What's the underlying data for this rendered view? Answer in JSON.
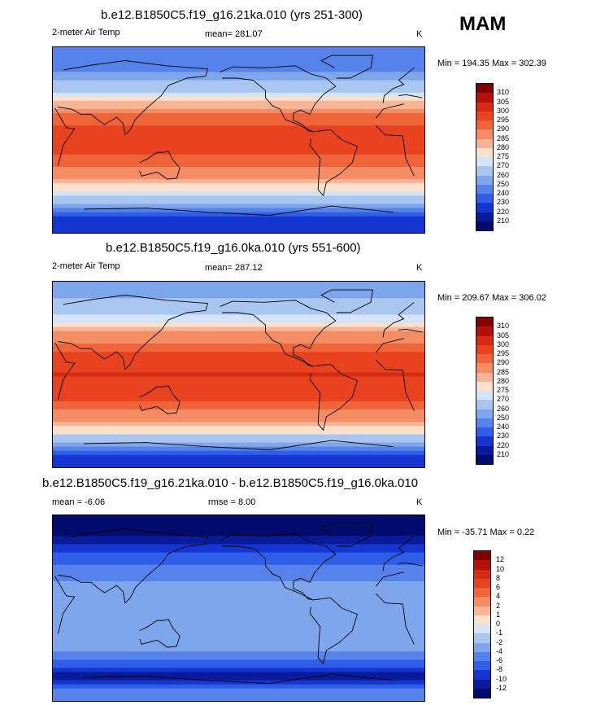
{
  "season_label": "MAM",
  "panels": [
    {
      "title": "b.e12.B1850C5.f19_g16.21ka.010 (yrs 251-300)",
      "left_label": "2-meter Air Temp",
      "mean_text": "mean= 281.07",
      "unit": "K",
      "minmax_text": "Min = 194.35 Max = 302.39"
    },
    {
      "title": "b.e12.B1850C5.f19_g16.0ka.010 (yrs 551-600)",
      "left_label": "2-meter Air Temp",
      "mean_text": "mean= 287.12",
      "unit": "K",
      "minmax_text": "Min = 209.67 Max = 306.02"
    },
    {
      "title": "b.e12.B1850C5.f19_g16.21ka.010 - b.e12.B1850C5.f19_g16.0ka.010",
      "left_label": "mean =  -6.06",
      "mean_text": "rmse =   8.00",
      "unit": "K",
      "minmax_text": "Min = -35.71 Max =   0.22"
    }
  ],
  "chart_data": [
    {
      "type": "heatmap",
      "title": "b.e12.B1850C5.f19_g16.21ka.010 (yrs 251-300)",
      "variable": "2-meter Air Temp",
      "units": "K",
      "mean": 281.07,
      "min": 194.35,
      "max": 302.39,
      "colorbar_ticks": [
        310,
        305,
        300,
        295,
        290,
        285,
        280,
        275,
        270,
        260,
        250,
        240,
        230,
        220,
        210
      ],
      "colors": [
        "#800000",
        "#b4100c",
        "#d52a14",
        "#e8431f",
        "#f0643a",
        "#f58d64",
        "#f8b496",
        "#fbe0cc",
        "#d4e4f8",
        "#a9c6f0",
        "#7ea6ec",
        "#5583ea",
        "#2f5fe8",
        "#1535d0",
        "#0a1b9a",
        "#000c6c"
      ],
      "latitude_bands_K": [
        {
          "lat": 75,
          "value": 240
        },
        {
          "lat": 55,
          "value": 262
        },
        {
          "lat": 40,
          "value": 278
        },
        {
          "lat": 20,
          "value": 293
        },
        {
          "lat": 0,
          "value": 298
        },
        {
          "lat": -20,
          "value": 294
        },
        {
          "lat": -40,
          "value": 283
        },
        {
          "lat": -55,
          "value": 270
        },
        {
          "lat": -65,
          "value": 250
        },
        {
          "lat": -80,
          "value": 222
        }
      ]
    },
    {
      "type": "heatmap",
      "title": "b.e12.B1850C5.f19_g16.0ka.010 (yrs 551-600)",
      "variable": "2-meter Air Temp",
      "units": "K",
      "mean": 287.12,
      "min": 209.67,
      "max": 306.02,
      "colorbar_ticks": [
        310,
        305,
        300,
        295,
        290,
        285,
        280,
        275,
        270,
        260,
        250,
        240,
        230,
        220,
        210
      ],
      "colors": [
        "#800000",
        "#b4100c",
        "#d52a14",
        "#e8431f",
        "#f0643a",
        "#f58d64",
        "#f8b496",
        "#fbe0cc",
        "#d4e4f8",
        "#a9c6f0",
        "#7ea6ec",
        "#5583ea",
        "#2f5fe8",
        "#1535d0",
        "#0a1b9a",
        "#000c6c"
      ],
      "latitude_bands_K": [
        {
          "lat": 75,
          "value": 258
        },
        {
          "lat": 55,
          "value": 272
        },
        {
          "lat": 40,
          "value": 285
        },
        {
          "lat": 20,
          "value": 297
        },
        {
          "lat": 0,
          "value": 300
        },
        {
          "lat": -20,
          "value": 297
        },
        {
          "lat": -40,
          "value": 288
        },
        {
          "lat": -55,
          "value": 277
        },
        {
          "lat": -65,
          "value": 262
        },
        {
          "lat": -80,
          "value": 228
        }
      ]
    },
    {
      "type": "heatmap",
      "title": "b.e12.B1850C5.f19_g16.21ka.010 - b.e12.B1850C5.f19_g16.0ka.010",
      "units": "K",
      "mean": -6.06,
      "rmse": 8.0,
      "min": -35.71,
      "max": 0.22,
      "colorbar_ticks": [
        12,
        10,
        8,
        6,
        4,
        2,
        1,
        0,
        -1,
        -2,
        -4,
        -6,
        -8,
        -10,
        -12
      ],
      "colors": [
        "#800000",
        "#b4100c",
        "#d52a14",
        "#e8431f",
        "#f0643a",
        "#f58d64",
        "#f8b496",
        "#fbe0cc",
        "#d4e4f8",
        "#a9c6f0",
        "#7ea6ec",
        "#5583ea",
        "#2f5fe8",
        "#1535d0",
        "#0a1b9a",
        "#000c6c"
      ],
      "latitude_bands_K": [
        {
          "lat": 75,
          "value": -14
        },
        {
          "lat": 55,
          "value": -8
        },
        {
          "lat": 40,
          "value": -6
        },
        {
          "lat": 20,
          "value": -3
        },
        {
          "lat": 0,
          "value": -2.5
        },
        {
          "lat": -20,
          "value": -3
        },
        {
          "lat": -40,
          "value": -4
        },
        {
          "lat": -55,
          "value": -7
        },
        {
          "lat": -65,
          "value": -12
        },
        {
          "lat": -80,
          "value": -6
        }
      ]
    }
  ]
}
